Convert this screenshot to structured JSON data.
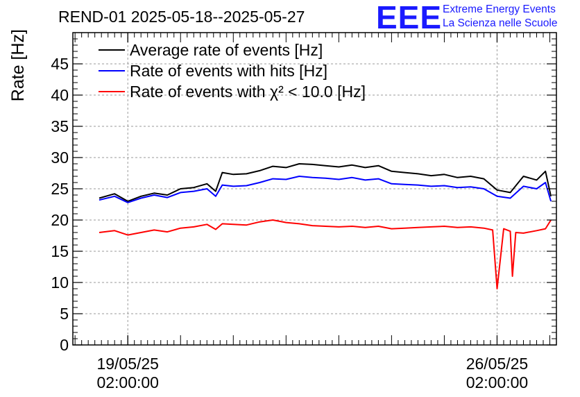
{
  "logo": {
    "mark": "EEE",
    "line1": "Extreme Energy Events",
    "line2": "La Scienza nelle Scuole",
    "color": "#1a1aff"
  },
  "chart_data": {
    "type": "line",
    "title": "REND-01 2025-05-18--2025-05-27",
    "ylabel": "Rate [Hz]",
    "xlabel": "",
    "xlim": [
      "2025-05-18T01:00",
      "2025-05-27T05:00"
    ],
    "ylim": [
      0,
      50
    ],
    "yticks": [
      0,
      5,
      10,
      15,
      20,
      25,
      30,
      35,
      40,
      45
    ],
    "xticks": [
      {
        "date": "2025-05-19T02:00",
        "line1": "19/05/25",
        "line2": "02:00:00"
      },
      {
        "date": "2025-05-26T02:00",
        "line1": "26/05/25",
        "line2": "02:00:00"
      }
    ],
    "grid": true,
    "legend_position": "top-left",
    "series": [
      {
        "name": "Average rate of events [Hz]",
        "color": "#000000",
        "x": [
          "2025-05-18T13:00",
          "2025-05-18T20:00",
          "2025-05-19T02:00",
          "2025-05-19T08:00",
          "2025-05-19T14:00",
          "2025-05-19T20:00",
          "2025-05-20T02:00",
          "2025-05-20T08:00",
          "2025-05-20T14:00",
          "2025-05-20T18:00",
          "2025-05-20T21:00",
          "2025-05-21T02:00",
          "2025-05-21T08:00",
          "2025-05-21T14:00",
          "2025-05-21T20:00",
          "2025-05-22T02:00",
          "2025-05-22T08:00",
          "2025-05-22T14:00",
          "2025-05-22T20:00",
          "2025-05-23T02:00",
          "2025-05-23T08:00",
          "2025-05-23T14:00",
          "2025-05-23T20:00",
          "2025-05-24T02:00",
          "2025-05-24T08:00",
          "2025-05-24T14:00",
          "2025-05-24T20:00",
          "2025-05-25T02:00",
          "2025-05-25T08:00",
          "2025-05-25T14:00",
          "2025-05-25T20:00",
          "2025-05-26T02:00",
          "2025-05-26T08:00",
          "2025-05-26T14:00",
          "2025-05-26T20:00",
          "2025-05-27T00:00",
          "2025-05-27T02:30"
        ],
        "y": [
          23.5,
          24.2,
          23.0,
          23.8,
          24.3,
          24.0,
          25.0,
          25.2,
          25.8,
          24.6,
          27.6,
          27.3,
          27.4,
          27.9,
          28.6,
          28.4,
          29.0,
          28.9,
          28.7,
          28.5,
          28.8,
          28.4,
          28.7,
          27.8,
          27.6,
          27.4,
          27.1,
          27.3,
          26.8,
          27.0,
          26.6,
          24.8,
          24.4,
          27.0,
          26.4,
          27.8,
          23.8
        ]
      },
      {
        "name": "Rate of events with hits [Hz]",
        "color": "#0000ff",
        "x": [
          "2025-05-18T13:00",
          "2025-05-18T20:00",
          "2025-05-19T02:00",
          "2025-05-19T08:00",
          "2025-05-19T14:00",
          "2025-05-19T20:00",
          "2025-05-20T02:00",
          "2025-05-20T08:00",
          "2025-05-20T14:00",
          "2025-05-20T18:00",
          "2025-05-20T21:00",
          "2025-05-21T02:00",
          "2025-05-21T08:00",
          "2025-05-21T14:00",
          "2025-05-21T20:00",
          "2025-05-22T02:00",
          "2025-05-22T08:00",
          "2025-05-22T14:00",
          "2025-05-22T20:00",
          "2025-05-23T02:00",
          "2025-05-23T08:00",
          "2025-05-23T14:00",
          "2025-05-23T20:00",
          "2025-05-24T02:00",
          "2025-05-24T08:00",
          "2025-05-24T14:00",
          "2025-05-24T20:00",
          "2025-05-25T02:00",
          "2025-05-25T08:00",
          "2025-05-25T14:00",
          "2025-05-25T20:00",
          "2025-05-26T02:00",
          "2025-05-26T08:00",
          "2025-05-26T14:00",
          "2025-05-26T20:00",
          "2025-05-27T00:00",
          "2025-05-27T02:30"
        ],
        "y": [
          23.2,
          23.8,
          22.8,
          23.5,
          24.0,
          23.6,
          24.4,
          24.6,
          25.0,
          23.8,
          25.6,
          25.4,
          25.5,
          26.0,
          26.6,
          26.5,
          27.0,
          26.8,
          26.7,
          26.5,
          26.8,
          26.4,
          26.6,
          25.8,
          25.7,
          25.6,
          25.4,
          25.5,
          25.2,
          25.3,
          25.0,
          23.8,
          23.5,
          25.4,
          25.0,
          26.0,
          23.0
        ]
      },
      {
        "name": "Rate of events with χ² < 10.0 [Hz]",
        "color": "#ff0000",
        "x": [
          "2025-05-18T13:00",
          "2025-05-18T20:00",
          "2025-05-19T02:00",
          "2025-05-19T08:00",
          "2025-05-19T14:00",
          "2025-05-19T20:00",
          "2025-05-20T02:00",
          "2025-05-20T08:00",
          "2025-05-20T14:00",
          "2025-05-20T18:00",
          "2025-05-20T21:00",
          "2025-05-21T02:00",
          "2025-05-21T08:00",
          "2025-05-21T14:00",
          "2025-05-21T20:00",
          "2025-05-22T02:00",
          "2025-05-22T08:00",
          "2025-05-22T14:00",
          "2025-05-22T20:00",
          "2025-05-23T02:00",
          "2025-05-23T08:00",
          "2025-05-23T14:00",
          "2025-05-23T20:00",
          "2025-05-24T02:00",
          "2025-05-24T08:00",
          "2025-05-24T14:00",
          "2025-05-24T20:00",
          "2025-05-25T02:00",
          "2025-05-25T08:00",
          "2025-05-25T14:00",
          "2025-05-25T20:00",
          "2025-05-26T00:00",
          "2025-05-26T02:00",
          "2025-05-26T05:00",
          "2025-05-26T08:00",
          "2025-05-26T09:00",
          "2025-05-26T10:30",
          "2025-05-26T14:00",
          "2025-05-26T20:00",
          "2025-05-27T00:00",
          "2025-05-27T02:30"
        ],
        "y": [
          18.0,
          18.3,
          17.6,
          18.0,
          18.4,
          18.1,
          18.7,
          18.9,
          19.3,
          18.5,
          19.4,
          19.3,
          19.2,
          19.7,
          20.0,
          19.6,
          19.4,
          19.1,
          19.0,
          18.9,
          19.0,
          18.8,
          19.0,
          18.6,
          18.7,
          18.8,
          18.9,
          19.0,
          18.8,
          18.9,
          18.7,
          18.4,
          9.0,
          18.6,
          18.2,
          11.0,
          18.0,
          17.9,
          18.3,
          18.6,
          20.0
        ]
      }
    ]
  }
}
